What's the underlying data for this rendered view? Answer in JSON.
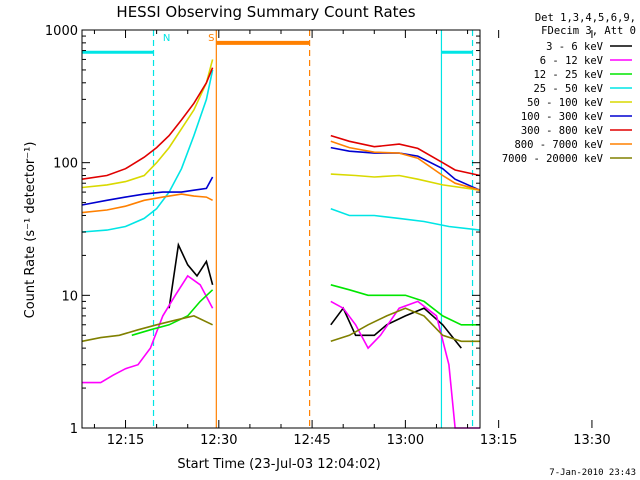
{
  "chart_data": {
    "type": "line",
    "title": "HESSI Observing Summary Count Rates",
    "xlabel": "Start Time (23-Jul-03 12:04:02)",
    "ylabel": "Count Rate (s⁻¹ detector⁻¹)",
    "y_scale": "log",
    "ylim": [
      1,
      1000
    ],
    "xlim_min": [
      4.0,
      68.0
    ],
    "x_ticks": [
      {
        "min": 11,
        "label": "12:15"
      },
      {
        "min": 26,
        "label": "12:30"
      },
      {
        "min": 41,
        "label": "12:45"
      },
      {
        "min": 56,
        "label": "13:00"
      },
      {
        "min": 71,
        "label": "13:15"
      },
      {
        "min": 86,
        "label": "13:30"
      }
    ],
    "y_ticks": [
      {
        "value": 1,
        "label": "1"
      },
      {
        "value": 10,
        "label": "10"
      },
      {
        "value": 100,
        "label": "100"
      },
      {
        "value": 1000,
        "label": "1000"
      }
    ],
    "legend_header": [
      "Det 1,3,4,5,6,9,",
      "FDecim 3, Att 0"
    ],
    "series": [
      {
        "name": "3 - 6 keV",
        "color": "#000000",
        "points": [
          [
            18,
            8
          ],
          [
            19.5,
            24
          ],
          [
            21,
            17
          ],
          [
            22.5,
            14
          ],
          [
            24,
            18
          ],
          [
            25,
            12
          ],
          [
            44,
            6
          ],
          [
            46,
            8
          ],
          [
            48,
            5
          ],
          [
            51,
            5
          ],
          [
            53,
            6
          ],
          [
            56,
            7
          ],
          [
            59,
            8
          ],
          [
            62,
            6
          ],
          [
            65,
            4
          ]
        ]
      },
      {
        "name": "6 - 12 keV",
        "color": "#ff00ff",
        "points": [
          [
            4,
            2.2
          ],
          [
            7,
            2.2
          ],
          [
            9,
            2.5
          ],
          [
            11,
            2.8
          ],
          [
            13,
            3
          ],
          [
            15,
            4
          ],
          [
            17,
            7
          ],
          [
            19,
            10
          ],
          [
            21,
            14
          ],
          [
            23,
            12
          ],
          [
            25,
            8
          ],
          [
            44,
            9
          ],
          [
            46,
            8
          ],
          [
            48,
            6
          ],
          [
            50,
            4
          ],
          [
            52,
            5
          ],
          [
            55,
            8
          ],
          [
            58,
            9
          ],
          [
            61,
            7
          ],
          [
            63,
            3
          ],
          [
            64,
            1
          ],
          [
            68,
            1
          ]
        ]
      },
      {
        "name": "12 - 25 keV",
        "color": "#00e600",
        "points": [
          [
            12,
            5
          ],
          [
            15,
            5.5
          ],
          [
            18,
            6
          ],
          [
            21,
            7
          ],
          [
            23,
            9
          ],
          [
            25,
            11
          ],
          [
            44,
            12
          ],
          [
            47,
            11
          ],
          [
            50,
            10
          ],
          [
            53,
            10
          ],
          [
            56,
            10
          ],
          [
            59,
            9
          ],
          [
            62,
            7
          ],
          [
            65,
            6
          ],
          [
            68,
            6
          ]
        ]
      },
      {
        "name": "25 - 50 keV",
        "color": "#00e5e5",
        "points": [
          [
            4,
            30
          ],
          [
            8,
            31
          ],
          [
            11,
            33
          ],
          [
            14,
            38
          ],
          [
            16,
            45
          ],
          [
            18,
            60
          ],
          [
            20,
            90
          ],
          [
            22,
            160
          ],
          [
            24,
            300
          ],
          [
            25,
            500
          ],
          [
            44,
            45
          ],
          [
            47,
            40
          ],
          [
            51,
            40
          ],
          [
            55,
            38
          ],
          [
            59,
            36
          ],
          [
            63,
            33
          ],
          [
            68,
            31
          ]
        ]
      },
      {
        "name": "50 - 100 keV",
        "color": "#d9d900",
        "points": [
          [
            4,
            65
          ],
          [
            8,
            68
          ],
          [
            11,
            72
          ],
          [
            14,
            80
          ],
          [
            16,
            100
          ],
          [
            18,
            130
          ],
          [
            20,
            180
          ],
          [
            22,
            250
          ],
          [
            24,
            400
          ],
          [
            25,
            600
          ],
          [
            44,
            82
          ],
          [
            48,
            80
          ],
          [
            51,
            78
          ],
          [
            55,
            80
          ],
          [
            58,
            75
          ],
          [
            62,
            68
          ],
          [
            68,
            62
          ]
        ]
      },
      {
        "name": "100 - 300 keV",
        "color": "#0000d0",
        "points": [
          [
            4,
            48
          ],
          [
            8,
            52
          ],
          [
            11,
            55
          ],
          [
            14,
            58
          ],
          [
            17,
            60
          ],
          [
            20,
            60
          ],
          [
            22,
            62
          ],
          [
            24,
            64
          ],
          [
            25,
            78
          ],
          [
            44,
            130
          ],
          [
            47,
            122
          ],
          [
            51,
            118
          ],
          [
            55,
            118
          ],
          [
            58,
            112
          ],
          [
            62,
            90
          ],
          [
            64,
            75
          ],
          [
            68,
            62
          ]
        ]
      },
      {
        "name": "300 - 800 keV",
        "color": "#e00000",
        "points": [
          [
            4,
            75
          ],
          [
            8,
            80
          ],
          [
            11,
            90
          ],
          [
            14,
            110
          ],
          [
            16,
            130
          ],
          [
            18,
            160
          ],
          [
            20,
            210
          ],
          [
            22,
            280
          ],
          [
            24,
            400
          ],
          [
            25,
            520
          ],
          [
            44,
            160
          ],
          [
            47,
            145
          ],
          [
            51,
            132
          ],
          [
            55,
            138
          ],
          [
            58,
            128
          ],
          [
            62,
            100
          ],
          [
            64,
            88
          ],
          [
            68,
            80
          ]
        ]
      },
      {
        "name": "800 - 7000 keV",
        "color": "#ff8000",
        "points": [
          [
            4,
            42
          ],
          [
            8,
            44
          ],
          [
            11,
            47
          ],
          [
            14,
            52
          ],
          [
            17,
            55
          ],
          [
            20,
            58
          ],
          [
            22,
            56
          ],
          [
            24,
            55
          ],
          [
            25,
            52
          ],
          [
            44,
            145
          ],
          [
            47,
            130
          ],
          [
            51,
            120
          ],
          [
            55,
            118
          ],
          [
            58,
            108
          ],
          [
            62,
            80
          ],
          [
            64,
            70
          ],
          [
            68,
            62
          ]
        ]
      },
      {
        "name": "7000 - 20000 keV",
        "color": "#808000",
        "points": [
          [
            4,
            4.5
          ],
          [
            7,
            4.8
          ],
          [
            10,
            5
          ],
          [
            13,
            5.5
          ],
          [
            16,
            6
          ],
          [
            19,
            6.5
          ],
          [
            22,
            7
          ],
          [
            25,
            6
          ],
          [
            44,
            4.5
          ],
          [
            47,
            5
          ],
          [
            50,
            6
          ],
          [
            53,
            7
          ],
          [
            56,
            8
          ],
          [
            59,
            7
          ],
          [
            62,
            5
          ],
          [
            65,
            4.5
          ],
          [
            68,
            4.5
          ]
        ]
      }
    ],
    "vlines": [
      {
        "min": 15.5,
        "style": "dashed",
        "color": "#00e5e5"
      },
      {
        "min": 25.6,
        "style": "solid",
        "color": "#ff8000"
      },
      {
        "min": 40.6,
        "style": "dashed",
        "color": "#ff8000"
      },
      {
        "min": 61.8,
        "style": "solid",
        "color": "#00e5e5"
      },
      {
        "min": 66.8,
        "style": "dashed",
        "color": "#00e5e5"
      }
    ],
    "hbars": [
      {
        "from": 4.0,
        "to": 15.5,
        "value": 680,
        "color": "#00e5e5"
      },
      {
        "from": 25.6,
        "to": 40.6,
        "value": 800,
        "color": "#ff8000"
      },
      {
        "from": 61.8,
        "to": 66.8,
        "value": 680,
        "color": "#00e5e5"
      }
    ],
    "markers": [
      {
        "text": "N",
        "min": 17.6,
        "color": "#00e5e5"
      },
      {
        "text": "S",
        "min": 24.8,
        "color": "#ff8000"
      }
    ],
    "grid": false,
    "legend_position": "right"
  },
  "footer": {
    "timestamp": "7-Jan-2010 23:43"
  }
}
